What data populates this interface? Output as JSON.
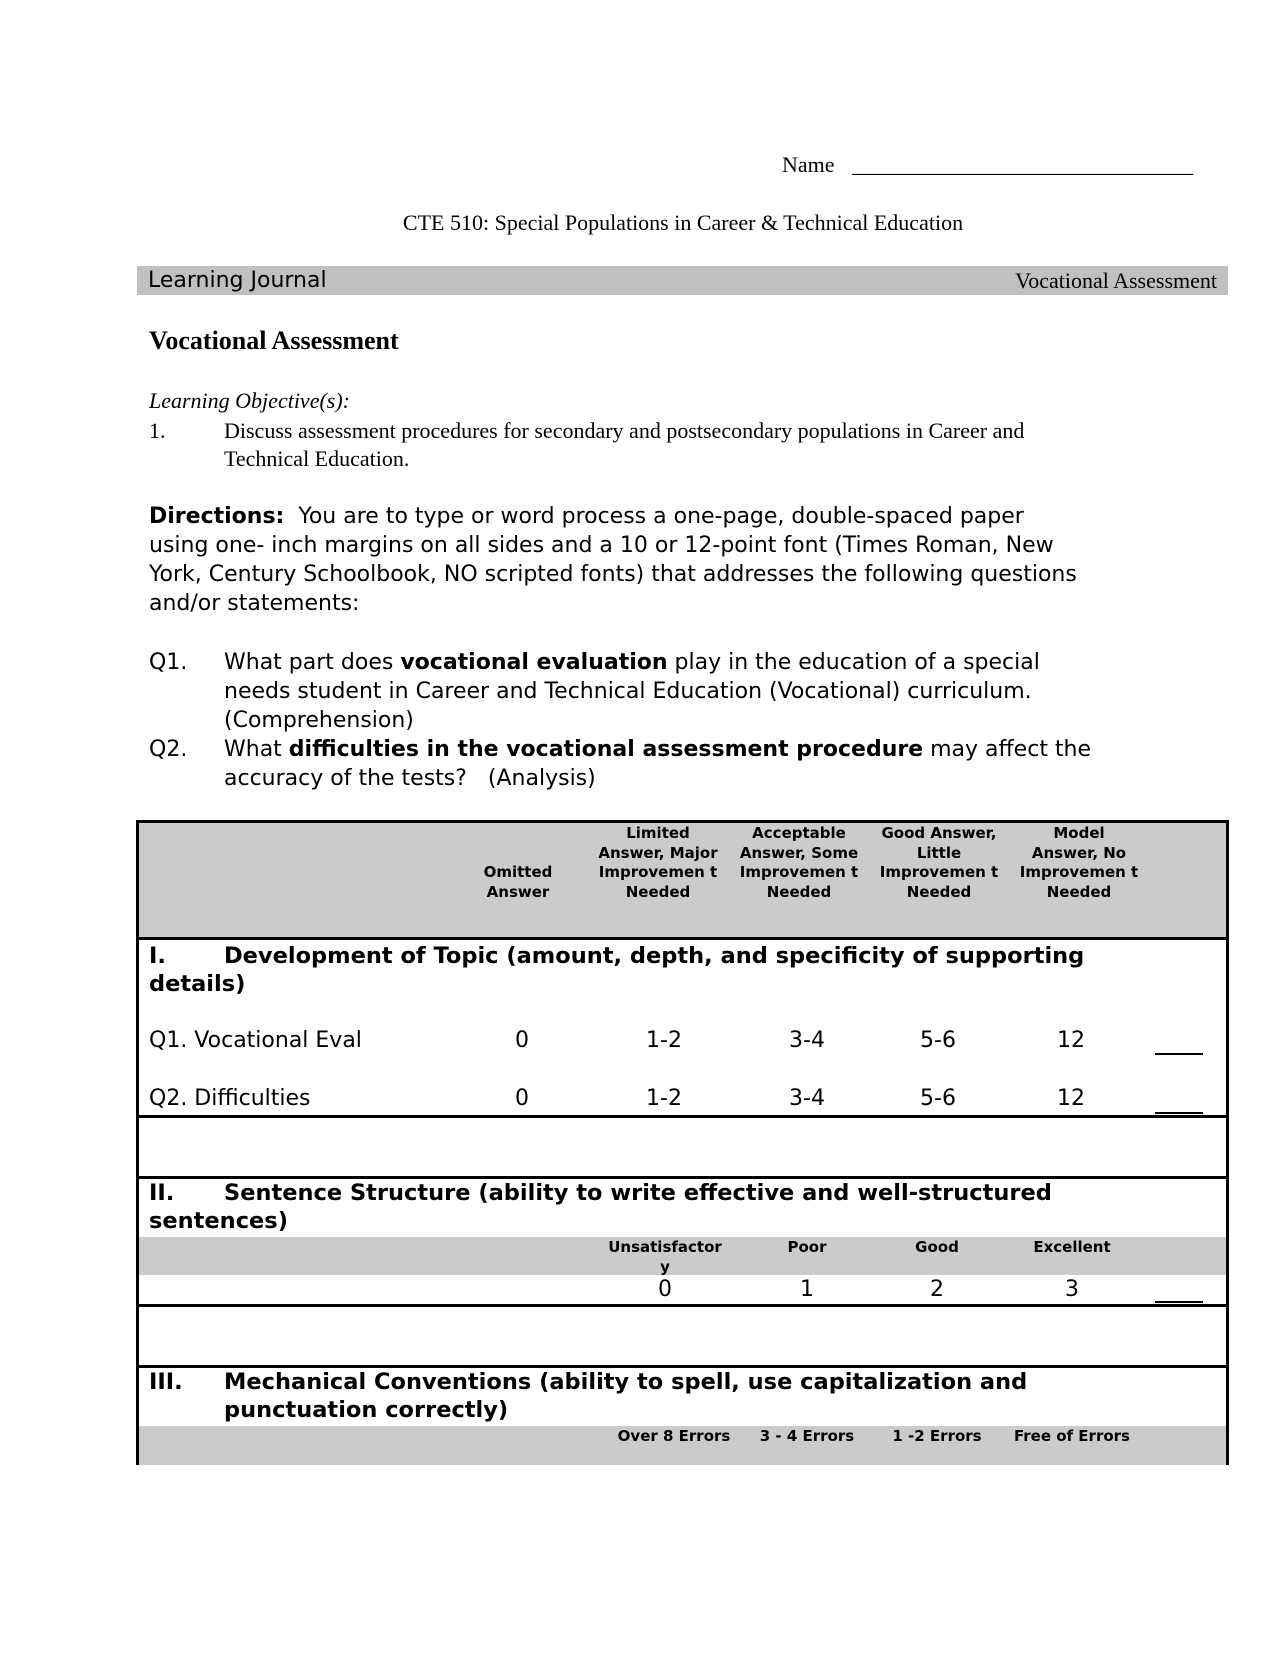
{
  "header": {
    "name_label": "Name",
    "name_blank": "_______________________________",
    "course_title": "CTE 510: Special Populations in Career & Technical Education",
    "band_left": "Learning Journal",
    "band_right": "Vocational Assessment"
  },
  "main": {
    "heading": "Vocational Assessment",
    "objectives_label": "Learning Objective(s):",
    "objectives": [
      {
        "num": "1.",
        "line1": "Discuss assessment procedures for secondary and postsecondary populations in Career and",
        "line2": "Technical Education."
      }
    ],
    "directions_label": "Directions:",
    "directions_lines": [
      "  You are to type or word process a one-page, double-spaced paper",
      "using one- inch margins on all sides and a 10 or 12-point font (Times Roman, New",
      "York, Century Schoolbook, NO scripted fonts) that addresses the following questions",
      "and/or statements:"
    ],
    "questions": [
      {
        "num": "Q1.",
        "pre": "What part does ",
        "bold": "vocational evaluation",
        "post": " play in the education of a special",
        "line2": "needs student in Career and Technical Education (Vocational) curriculum.",
        "line3": "(Comprehension)"
      },
      {
        "num": "Q2.",
        "pre": "What ",
        "bold": "difficulties in the vocational assessment procedure",
        "post": " may affect the",
        "line2": "accuracy of the tests?   (Analysis)"
      }
    ]
  },
  "rubric": {
    "columns": [
      "Omitted Answer",
      "Limited Answer, Major Improvemen t Needed",
      "Acceptable Answer, Some Improvemen t Needed",
      "Good Answer, Little Improvemen t Needed",
      "Model Answer, No Improvemen t Needed"
    ],
    "section1": {
      "num": "I.",
      "title_line1": "Development of Topic (amount, depth, and specificity of supporting",
      "title_line2": "details)",
      "rows": [
        {
          "label": "Q1.  Vocational Eval",
          "values": [
            "0",
            "1-2",
            "3-4",
            "5-6",
            "12"
          ],
          "blank": "____"
        },
        {
          "label": "Q2.  Difficulties",
          "values": [
            "0",
            "1-2",
            "3-4",
            "5-6",
            "12"
          ],
          "blank": "____"
        }
      ]
    },
    "section2": {
      "num": "II.",
      "title_line1": "Sentence Structure (ability to write effective and well-structured",
      "title_line2": "sentences)",
      "columns": [
        "Unsatisfactor y",
        "Poor",
        "Good",
        "Excellent"
      ],
      "values": [
        "0",
        "1",
        "2",
        "3"
      ],
      "blank": "____"
    },
    "section3": {
      "num": "III.",
      "title_line1": "Mechanical Conventions (ability to spell, use capitalization and",
      "title_line2": "punctuation correctly)",
      "columns": [
        "Over 8 Errors",
        "3 - 4 Errors",
        "1 -2 Errors",
        "Free of Errors"
      ]
    }
  }
}
